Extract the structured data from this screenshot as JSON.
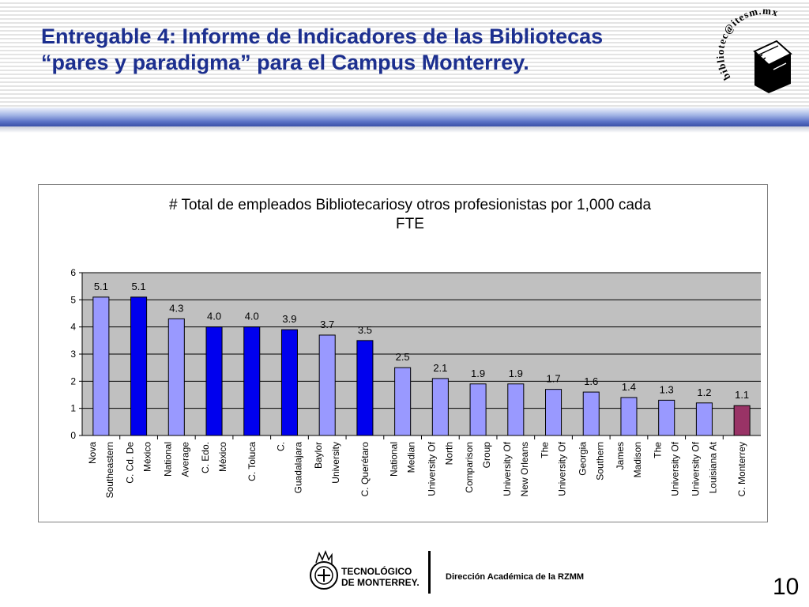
{
  "slide": {
    "title_line1": "Entregable 4: Informe de Indicadores de las Bibliotecas",
    "title_line2": "“pares y paradigma” para el Campus Monterrey.",
    "logo_text": "bibliotec@itesm.mx",
    "footer_institution_line1": "TECNOLÓGICO",
    "footer_institution_line2": "DE MONTERREY.",
    "footer_text": "Dirección Académica de la RZMM",
    "page_number": "10"
  },
  "colors": {
    "title": "#1c2f8f",
    "bar_peer": "#9999ff",
    "bar_campus": "#0000ee",
    "bar_monterrey": "#993366",
    "plot_bg": "#c0c0c0"
  },
  "chart_data": {
    "type": "bar",
    "title_line1": "# Total de empleados Bibliotecariosy otros profesionistas por 1,000 cada",
    "title_line2": "FTE",
    "ylim": [
      0,
      6
    ],
    "yticks": [
      "0",
      "1",
      "2",
      "3",
      "4",
      "5",
      "6"
    ],
    "grid": true,
    "categories": [
      [
        "Nova",
        "Southeastern"
      ],
      [
        "C. Cd. De",
        "México"
      ],
      [
        "National",
        "Average"
      ],
      [
        "C. Edo.",
        "México"
      ],
      [
        "C. Toluca"
      ],
      [
        "C.",
        "Guadalajara"
      ],
      [
        "Baylor",
        "University"
      ],
      [
        "C. Querétaro"
      ],
      [
        "National",
        "Median"
      ],
      [
        "University Of",
        "North"
      ],
      [
        "Comparison",
        "Group"
      ],
      [
        "University Of",
        "New Orleans"
      ],
      [
        "The",
        "University Of"
      ],
      [
        "Georgia",
        "Southern"
      ],
      [
        "James",
        "Madison"
      ],
      [
        "The",
        "University Of"
      ],
      [
        "University Of",
        "Louisiana At"
      ],
      [
        "C. Monterrey"
      ]
    ],
    "values": [
      5.1,
      5.1,
      4.3,
      4.0,
      4.0,
      3.9,
      3.7,
      3.5,
      2.5,
      2.1,
      1.9,
      1.9,
      1.7,
      1.6,
      1.4,
      1.3,
      1.2,
      1.1
    ],
    "data_labels": [
      "5.1",
      "5.1",
      "4.3",
      "4.0",
      "4.0",
      "3.9",
      "3.7",
      "3.5",
      "2.5",
      "2.1",
      "1.9",
      "1.9",
      "1.7",
      "1.6",
      "1.4",
      "1.3",
      "1.2",
      "1.1"
    ],
    "bar_groups": [
      "peer",
      "campus",
      "peer",
      "campus",
      "campus",
      "campus",
      "peer",
      "campus",
      "peer",
      "peer",
      "peer",
      "peer",
      "peer",
      "peer",
      "peer",
      "peer",
      "peer",
      "monterrey"
    ]
  }
}
